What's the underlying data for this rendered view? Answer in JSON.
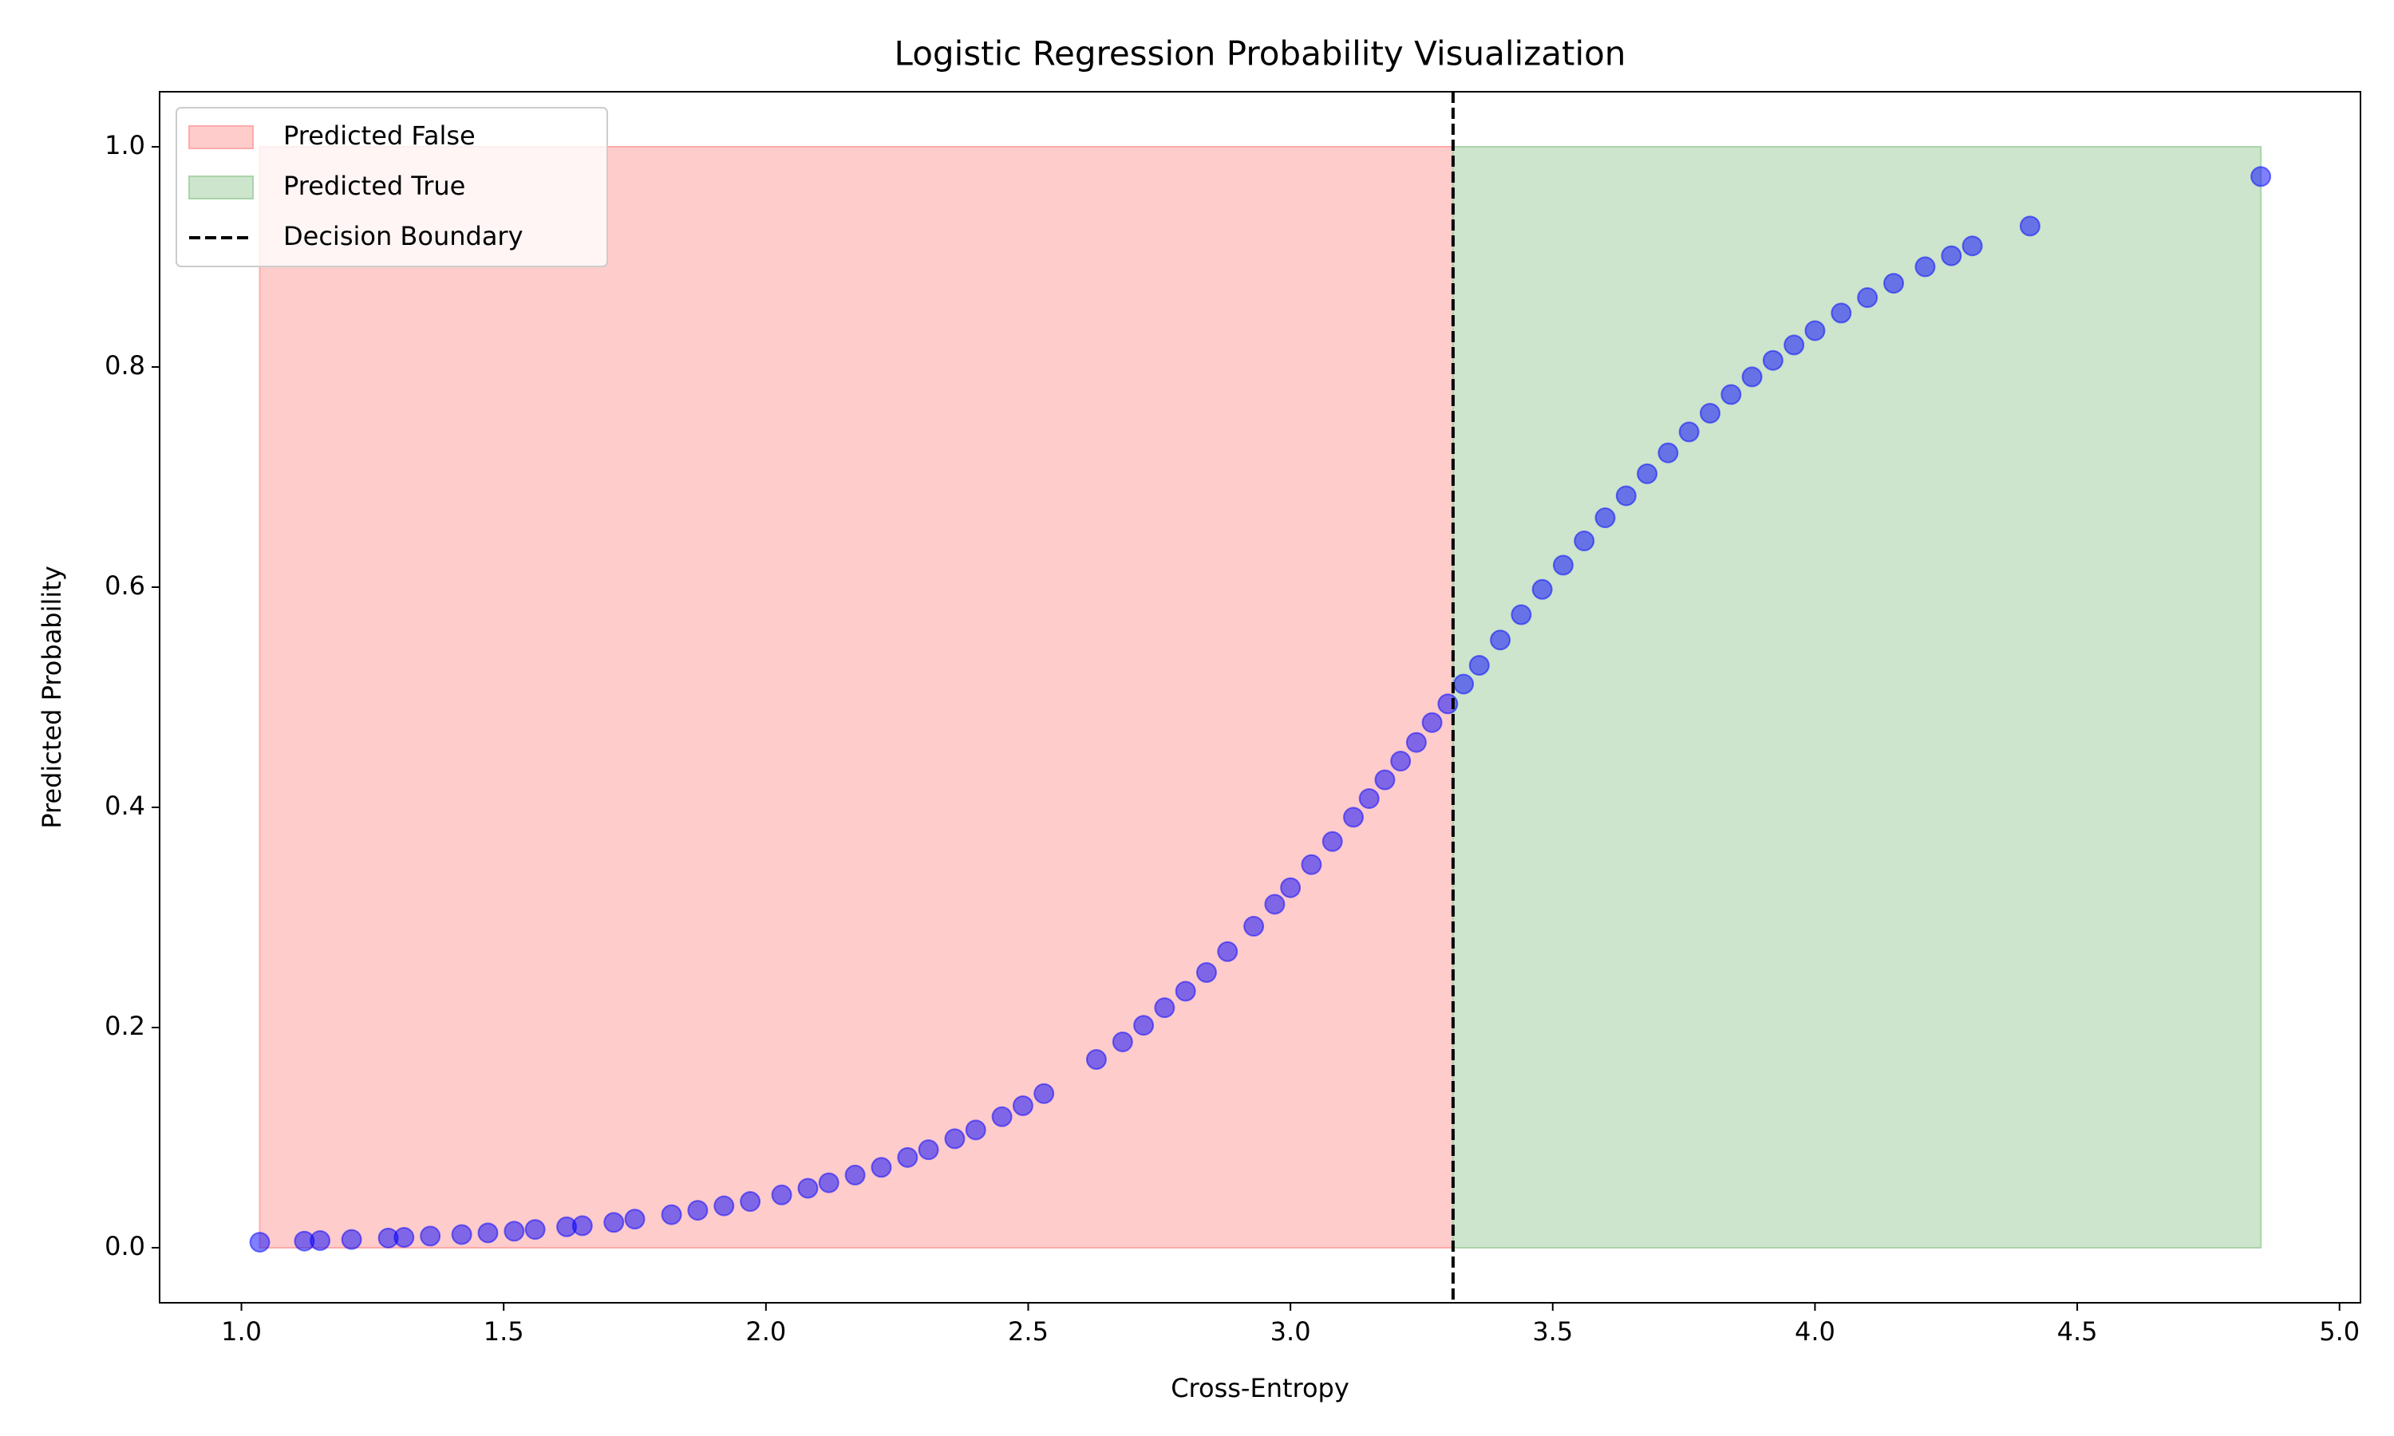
{
  "chart_data": {
    "type": "scatter",
    "title": "Logistic Regression Probability Visualization",
    "xlabel": "Cross-Entropy",
    "ylabel": "Predicted Probability",
    "color": "#0000ff",
    "x": [
      1.035,
      1.12,
      1.15,
      1.21,
      1.28,
      1.31,
      1.36,
      1.42,
      1.47,
      1.52,
      1.56,
      1.62,
      1.65,
      1.71,
      1.75,
      1.82,
      1.87,
      1.92,
      1.97,
      2.03,
      2.08,
      2.12,
      2.17,
      2.22,
      2.27,
      2.31,
      2.36,
      2.4,
      2.45,
      2.49,
      2.53,
      2.63,
      2.68,
      2.72,
      2.76,
      2.8,
      2.84,
      2.88,
      2.93,
      2.97,
      3.0,
      3.04,
      3.08,
      3.12,
      3.15,
      3.18,
      3.21,
      3.24,
      3.27,
      3.3,
      3.33,
      3.36,
      3.4,
      3.44,
      3.48,
      3.52,
      3.56,
      3.6,
      3.64,
      3.68,
      3.72,
      3.76,
      3.8,
      3.84,
      3.88,
      3.92,
      3.96,
      4.0,
      4.05,
      4.1,
      4.15,
      4.21,
      4.26,
      4.3,
      4.41,
      4.85
    ],
    "values": [
      0.005,
      0.006,
      0.0065,
      0.0075,
      0.0088,
      0.0094,
      0.0106,
      0.012,
      0.0135,
      0.015,
      0.0166,
      0.019,
      0.02,
      0.023,
      0.026,
      0.03,
      0.034,
      0.038,
      0.042,
      0.048,
      0.054,
      0.059,
      0.066,
      0.073,
      0.082,
      0.089,
      0.099,
      0.107,
      0.119,
      0.129,
      0.14,
      0.171,
      0.187,
      0.202,
      0.218,
      0.233,
      0.25,
      0.269,
      0.292,
      0.312,
      0.327,
      0.348,
      0.369,
      0.391,
      0.408,
      0.425,
      0.442,
      0.459,
      0.477,
      0.494,
      0.512,
      0.529,
      0.552,
      0.575,
      0.598,
      0.62,
      0.642,
      0.663,
      0.683,
      0.703,
      0.722,
      0.741,
      0.758,
      0.775,
      0.791,
      0.806,
      0.82,
      0.833,
      0.849,
      0.863,
      0.876,
      0.891,
      0.901,
      0.91,
      0.928,
      0.973
    ],
    "regions": [
      {
        "name": "Predicted False",
        "color": "#ffcccc",
        "edge": "#ffaaaa",
        "x": [
          1.035,
          3.31
        ],
        "y": [
          0,
          1
        ]
      },
      {
        "name": "Predicted True",
        "color": "#cce5cc",
        "edge": "#aad4aa",
        "x": [
          3.31,
          4.85
        ],
        "y": [
          0,
          1
        ]
      }
    ],
    "boundary": {
      "name": "Decision Boundary",
      "x": 3.31,
      "color": "#000000"
    },
    "xlim": [
      0.844,
      5.04
    ],
    "ylim": [
      -0.05,
      1.05
    ],
    "xticks": [
      {
        "value": 1.0,
        "label": "1.0"
      },
      1.5,
      {
        "value": 2.0,
        "label": "2.0"
      },
      2.5,
      {
        "value": 3.0,
        "label": "3.0"
      },
      3.5,
      {
        "value": 4.0,
        "label": "4.0"
      },
      4.5,
      {
        "value": 5.0,
        "label": "5.0"
      }
    ],
    "yticks": [
      {
        "value": 0.0,
        "label": "0.0"
      },
      0.2,
      0.4,
      0.6,
      0.8,
      {
        "value": 1.0,
        "label": "1.0"
      }
    ],
    "legend": "upper left"
  }
}
